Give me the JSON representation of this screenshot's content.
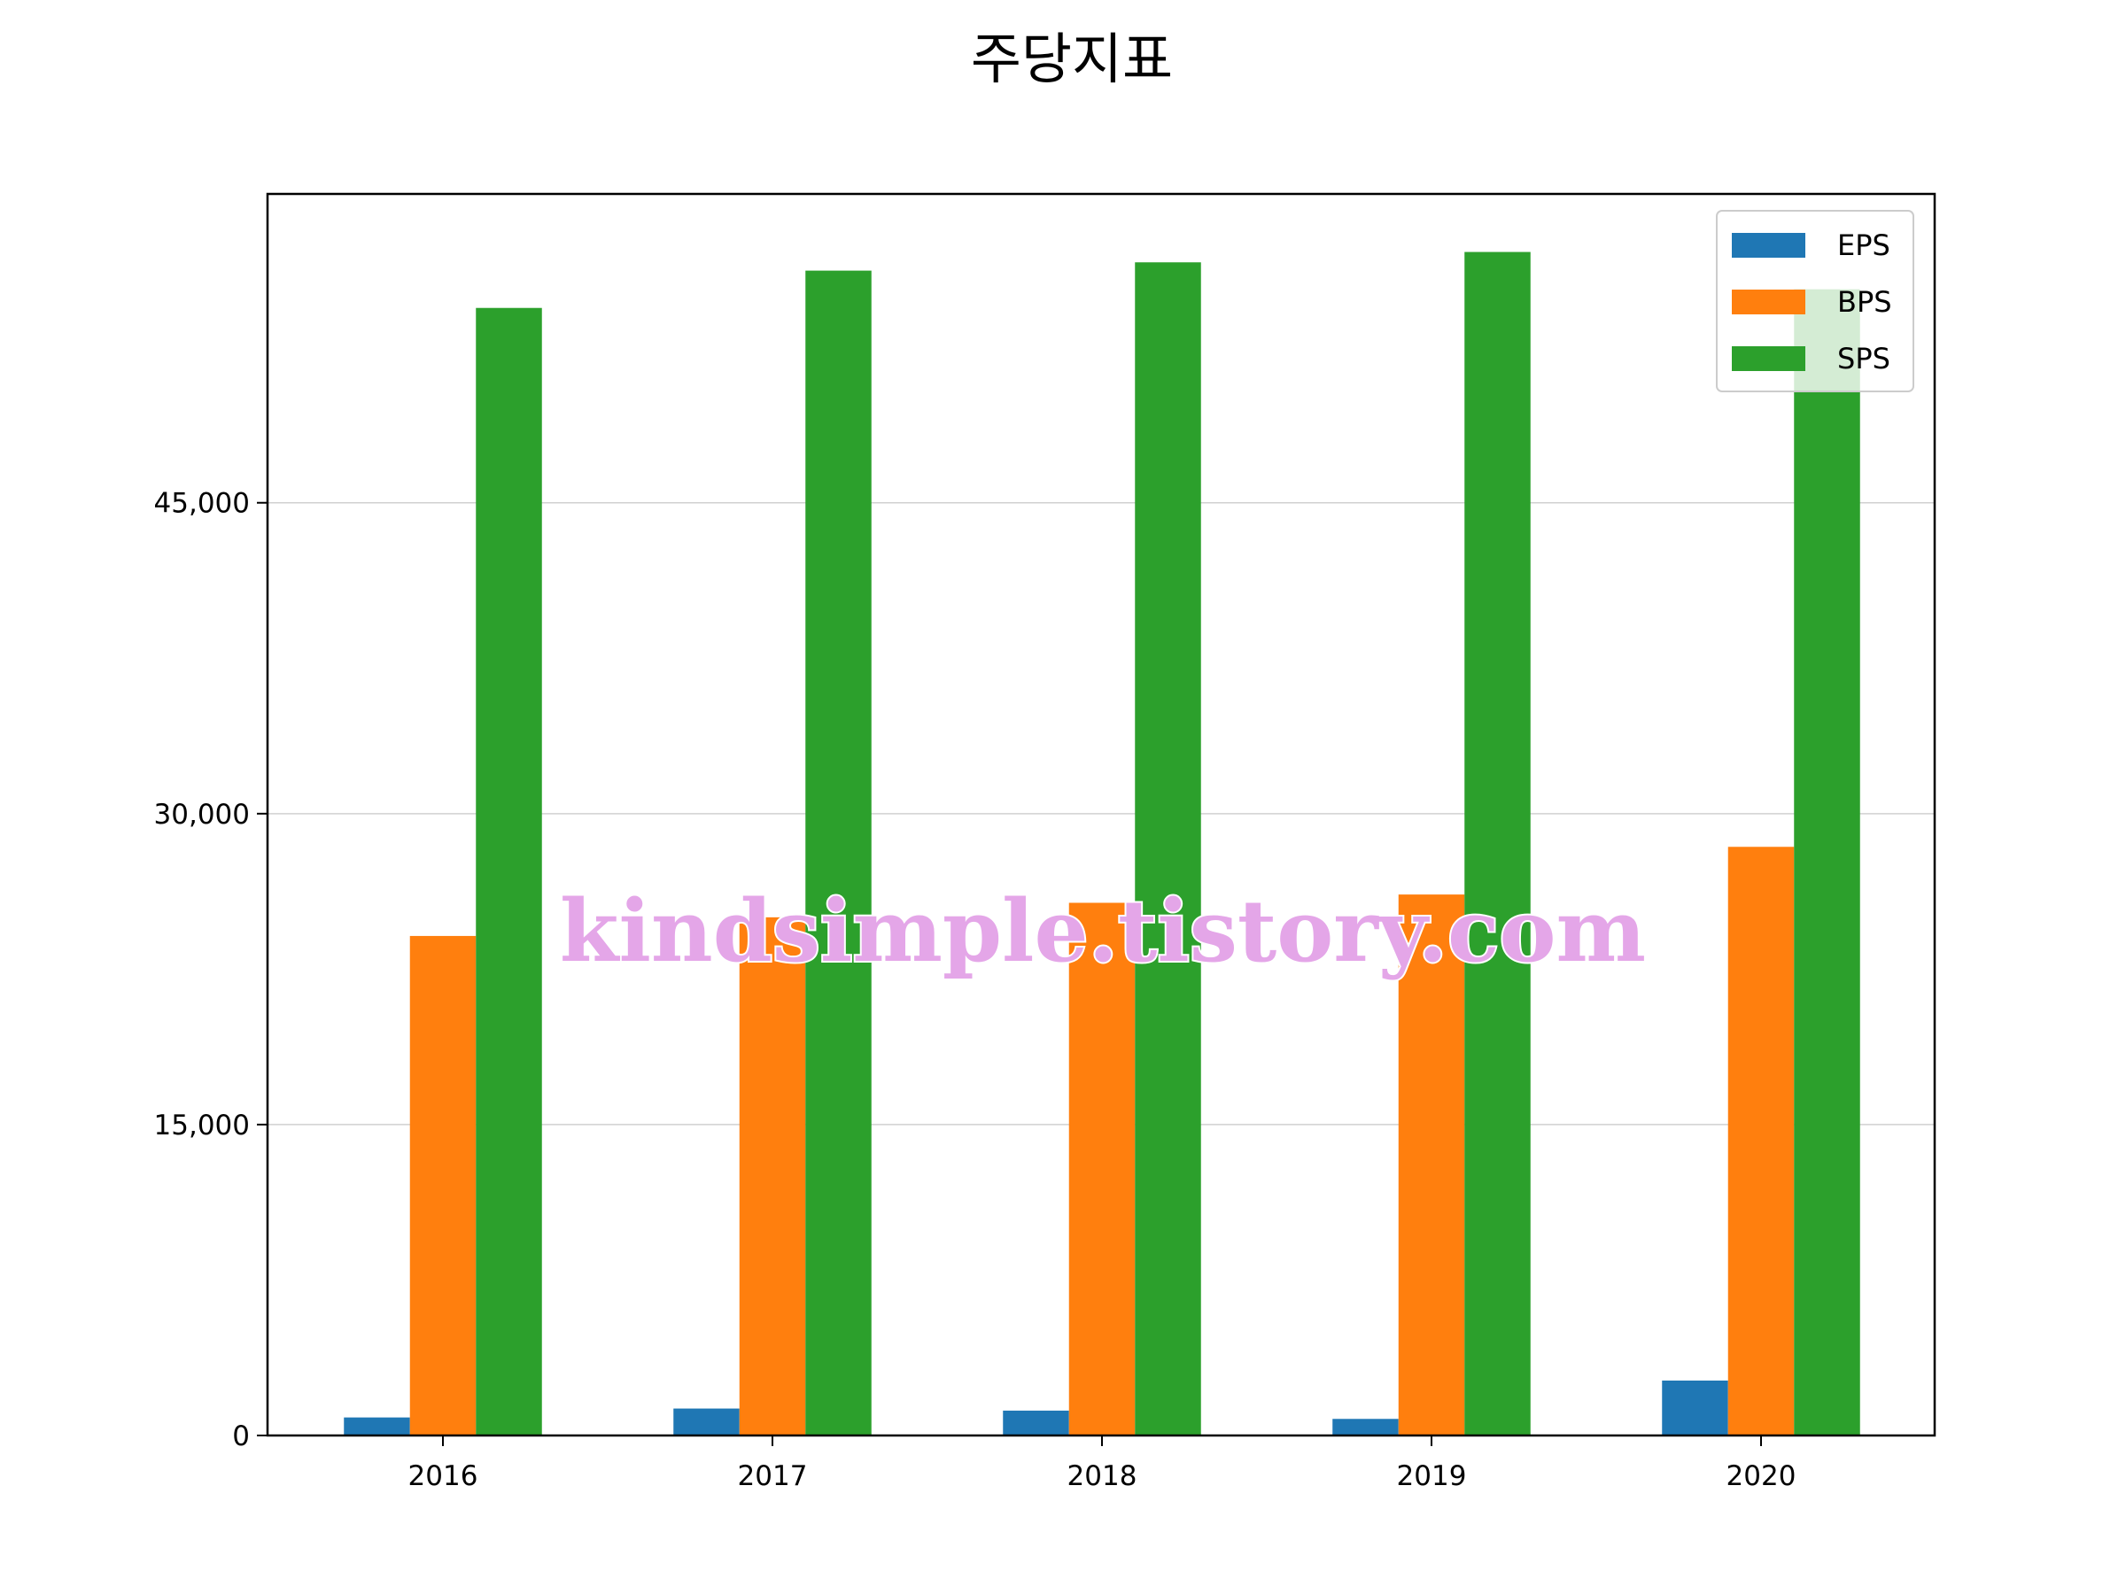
{
  "chart_data": {
    "type": "bar",
    "title": "주당지표",
    "xlabel": "",
    "ylabel": "",
    "categories": [
      "2016",
      "2017",
      "2018",
      "2019",
      "2020"
    ],
    "series": [
      {
        "name": "EPS",
        "color": "#1f77b4",
        "values": [
          870,
          1300,
          1200,
          800,
          2650
        ]
      },
      {
        "name": "BPS",
        "color": "#ff7f0e",
        "values": [
          24100,
          25000,
          25700,
          26100,
          28400
        ]
      },
      {
        "name": "SPS",
        "color": "#2ca02c",
        "values": [
          54400,
          56200,
          56600,
          57100,
          55300
        ]
      }
    ],
    "ylim": [
      0,
      59900
    ],
    "yticks": [
      0,
      15000,
      30000,
      45000
    ],
    "ytick_labels": [
      "0",
      "15,000",
      "30,000",
      "45,000"
    ],
    "grid": {
      "y": true,
      "color": "#d0d0d0"
    },
    "legend": {
      "placement": "top-right"
    },
    "watermark": "kindsimple.tistory.com"
  }
}
